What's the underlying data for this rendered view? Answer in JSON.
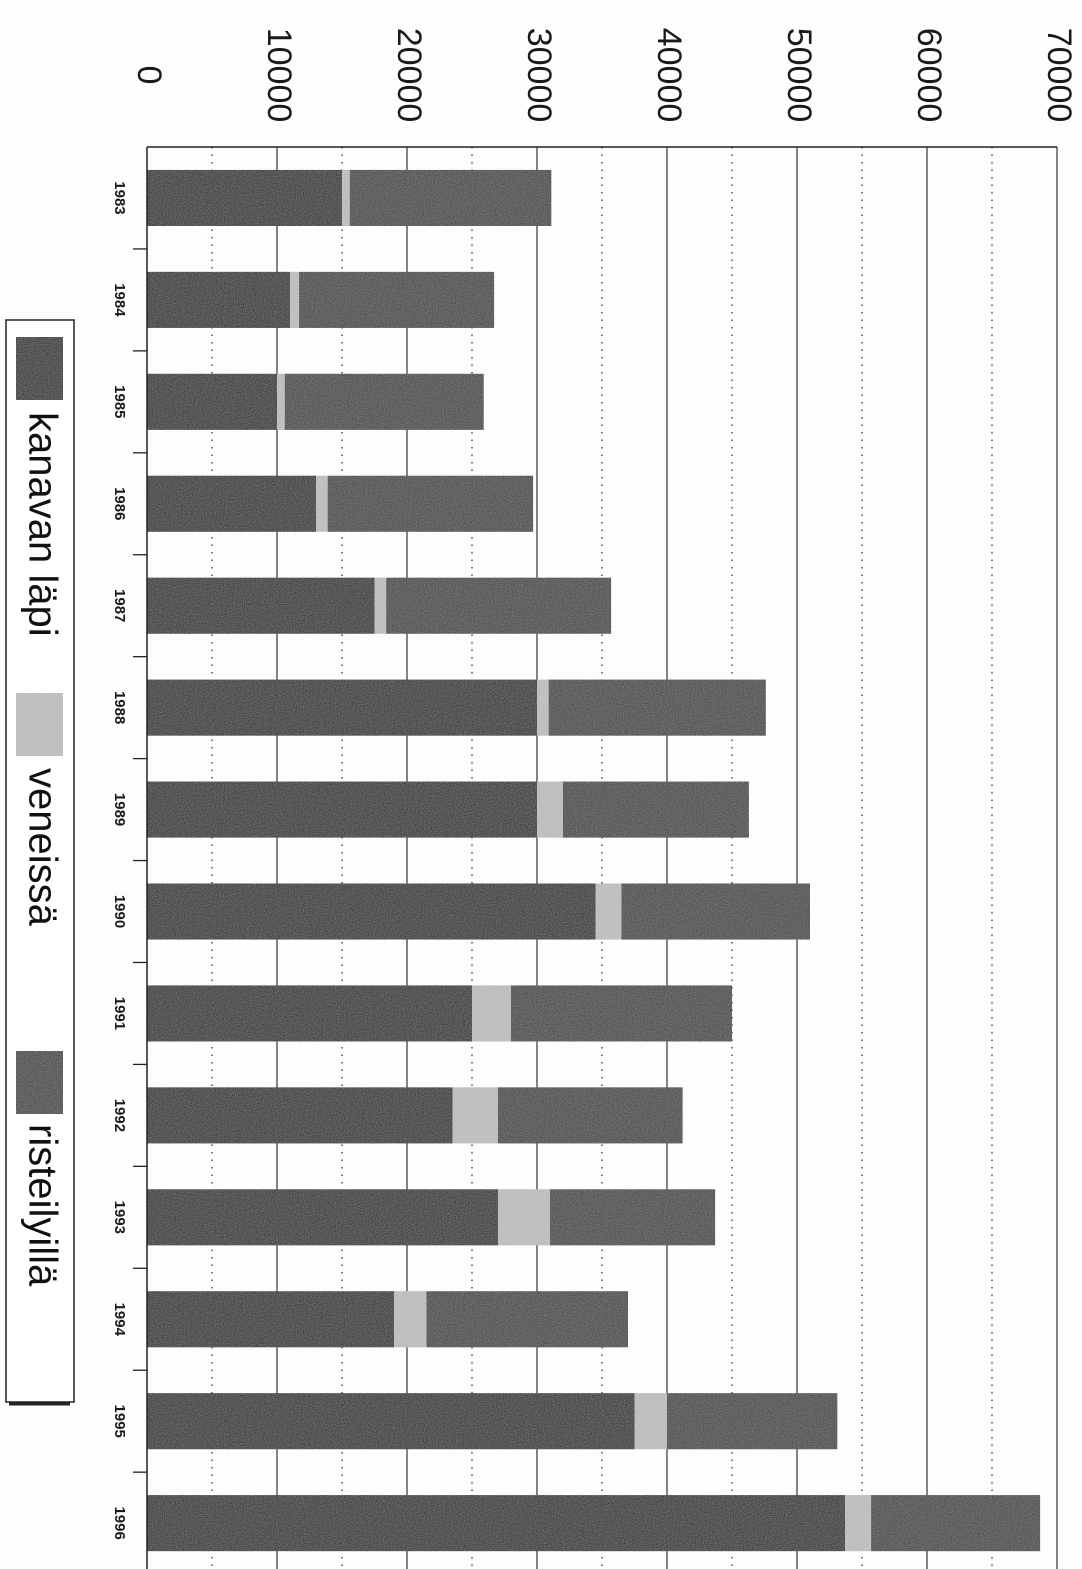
{
  "chart_data": {
    "type": "bar",
    "stacked": true,
    "orientation": "vertical (image rotated 90° clockwise)",
    "categories": [
      "1983",
      "1984",
      "1985",
      "1986",
      "1987",
      "1988",
      "1989",
      "1990",
      "1991",
      "1992",
      "1993",
      "1994",
      "1995",
      "1996"
    ],
    "series": [
      {
        "name": "kanavan läpi",
        "color": "#1c1c1c",
        "values": [
          15000,
          11000,
          10000,
          13000,
          17500,
          30000,
          30000,
          34500,
          25000,
          23500,
          27000,
          19000,
          37500,
          53700
        ]
      },
      {
        "name": "veneissä",
        "color": "#b8b8b8",
        "values": [
          600,
          700,
          600,
          900,
          900,
          900,
          2000,
          2000,
          3000,
          3500,
          4000,
          2500,
          2500,
          2000
        ]
      },
      {
        "name": "risteilyillä",
        "color": "#3a3a3a",
        "values": [
          15500,
          15000,
          15300,
          15800,
          17300,
          16700,
          14300,
          14500,
          17000,
          14200,
          12700,
          15500,
          13100,
          13000
        ]
      }
    ],
    "yticks": [
      "0",
      "10000",
      "20000",
      "30000",
      "40000",
      "50000",
      "60000",
      "70000"
    ],
    "ylim": [
      0,
      70000
    ],
    "title": "",
    "xlabel": "",
    "ylabel": "",
    "grid": "solid lines at 10000 steps, dotted lines at 5000 midpoints",
    "legend_position": "bottom (left side of rotated image)"
  }
}
